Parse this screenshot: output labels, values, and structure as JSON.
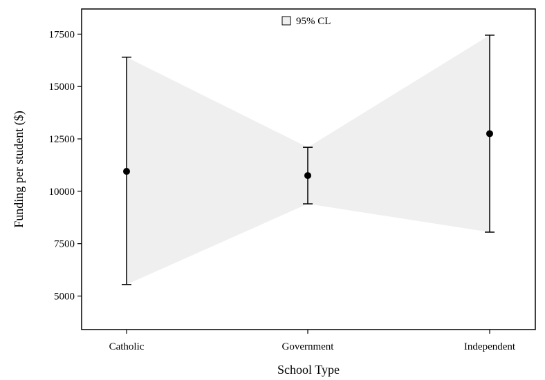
{
  "chart_data": {
    "type": "scatter",
    "title": "",
    "xlabel": "School Type",
    "ylabel": "Funding per student ($)",
    "categories": [
      "Catholic",
      "Government",
      "Independent"
    ],
    "series": [
      {
        "means": [
          10950,
          10750,
          12750
        ],
        "lower": [
          5550,
          9400,
          8050
        ],
        "upper": [
          16400,
          12100,
          17450
        ]
      }
    ],
    "band_label": "95% CL",
    "band_color": "#efefef",
    "marker_color": "#000000",
    "ylim": [
      3400,
      18700
    ],
    "yticks": [
      5000,
      7500,
      10000,
      12500,
      15000,
      17500
    ],
    "ytick_labels": [
      "5000",
      "7500",
      "10000",
      "12500",
      "15000",
      "17500"
    ],
    "grid": false,
    "legend_position": "top-center"
  }
}
